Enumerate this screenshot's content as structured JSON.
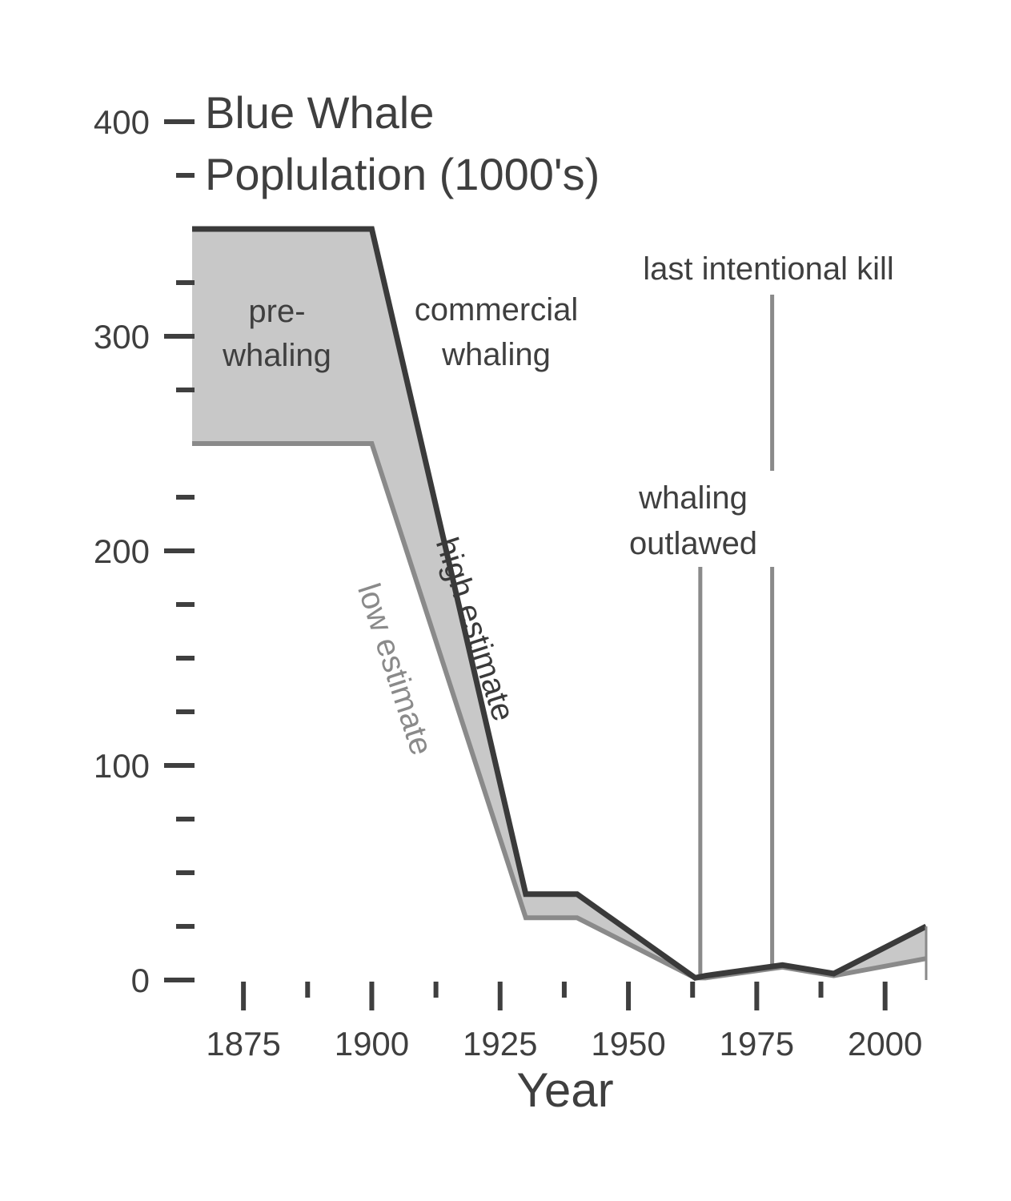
{
  "chart_data": {
    "type": "area",
    "title_lines": [
      "Blue Whale",
      "Poplulation (1000's)"
    ],
    "xlabel": "Year",
    "ylabel": "",
    "xlim": [
      1865,
      2008
    ],
    "ylim": [
      0,
      400
    ],
    "x_ticks": [
      1875,
      1900,
      1925,
      1950,
      1975,
      2000
    ],
    "x_minor_ticks": [
      1887.5,
      1912.5,
      1937.5,
      1962.5,
      1987.5
    ],
    "y_ticks": [
      0,
      100,
      200,
      300,
      400
    ],
    "y_minor_ticks": [
      25,
      50,
      75,
      125,
      150,
      175,
      225,
      275,
      325,
      375
    ],
    "grid": false,
    "series": [
      {
        "name": "high estimate",
        "color": "#3a3a3a",
        "x": [
          1865,
          1900,
          1930,
          1940,
          1963,
          1965,
          1980,
          1990,
          2008
        ],
        "y": [
          350,
          350,
          40,
          40,
          1,
          2,
          7,
          3,
          25
        ]
      },
      {
        "name": "low estimate",
        "color": "#8a8a8a",
        "x": [
          1865,
          1900,
          1930,
          1940,
          1963,
          1965,
          1980,
          1990,
          2008
        ],
        "y": [
          250,
          250,
          29,
          29,
          1,
          1,
          6,
          2,
          10
        ]
      }
    ],
    "band_fill": "#c8c8c8",
    "vertical_markers": [
      {
        "x": 1964,
        "label_lines": [
          "whaling",
          "outlawed"
        ],
        "color": "#8a8a8a"
      },
      {
        "x": 1978,
        "label_lines": [
          "last intentional kill"
        ],
        "color": "#8a8a8a"
      }
    ],
    "annotations": [
      {
        "label_lines": [
          "pre-",
          "whaling"
        ]
      },
      {
        "label_lines": [
          "commercial",
          "whaling"
        ]
      }
    ]
  }
}
